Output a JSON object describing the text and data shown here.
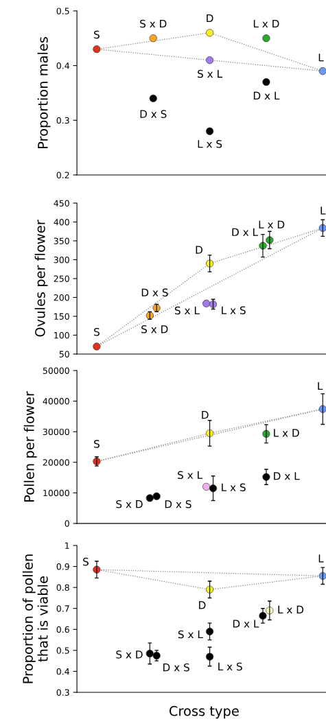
{
  "chart_data": [
    {
      "type": "scatter",
      "ylabel": "Proportion males",
      "categories": [
        null,
        null,
        null,
        null,
        null
      ],
      "ylim": [
        0.2,
        0.5
      ],
      "yticks": [
        0.2,
        0.3,
        0.4,
        0.5
      ],
      "tick_labels": "y",
      "marker": "circle",
      "series": [
        {
          "type": "line",
          "color": "#808080",
          "line_style": "dotted",
          "marker": "none",
          "values": [
            0.43,
            null,
            0.46,
            null,
            0.39
          ]
        },
        {
          "type": "line",
          "color": "#808080",
          "line_style": "dotted",
          "marker": "none",
          "values": [
            0.43,
            null,
            null,
            null,
            0.39
          ]
        },
        {
          "name": "S",
          "color": "#e0301e",
          "values": [
            0.43,
            null,
            null,
            null,
            null
          ]
        },
        {
          "name": "S x D",
          "color": "#f5a623",
          "values": [
            null,
            0.45,
            null,
            null,
            null
          ]
        },
        {
          "name": "D x S",
          "color": "#000000",
          "values": [
            null,
            0.34,
            null,
            null,
            null
          ]
        },
        {
          "name": "D",
          "color": "#f5f020",
          "values": [
            null,
            null,
            0.46,
            null,
            null
          ]
        },
        {
          "name": "S x L",
          "color": "#a07ae8",
          "values": [
            null,
            null,
            0.41,
            null,
            null
          ]
        },
        {
          "name": "L x S",
          "color": "#000000",
          "values": [
            null,
            null,
            0.28,
            null,
            null
          ]
        },
        {
          "name": "L x D",
          "color": "#2ea82e",
          "values": [
            null,
            null,
            null,
            0.45,
            null
          ]
        },
        {
          "name": "D x L",
          "color": "#000000",
          "values": [
            null,
            null,
            null,
            0.37,
            null
          ]
        },
        {
          "name": "L",
          "color": "#6a9af0",
          "values": [
            null,
            null,
            null,
            null,
            0.39
          ]
        }
      ]
    },
    {
      "type": "scatter",
      "ylabel": "Ovules per flower",
      "categories": [
        null,
        null,
        null,
        null,
        null
      ],
      "ylim": [
        50,
        450
      ],
      "yticks": [
        50,
        100,
        150,
        200,
        250,
        300,
        350,
        400,
        450
      ],
      "tick_labels": "y",
      "marker": "circle",
      "series": [
        {
          "type": "line",
          "color": "#808080",
          "line_style": "dotted",
          "marker": "none",
          "values": [
            70,
            null,
            290,
            null,
            384
          ]
        },
        {
          "type": "line",
          "color": "#808080",
          "line_style": "dotted",
          "marker": "none",
          "values": [
            70,
            null,
            null,
            null,
            384
          ]
        },
        {
          "name": "S",
          "color": "#e0301e",
          "values": [
            70,
            null,
            null,
            null,
            null
          ]
        },
        {
          "name": "S x D",
          "color": "#f5a623",
          "values": [
            null,
            152,
            null,
            null,
            null
          ],
          "errors": [
            null,
            10,
            null,
            null,
            null
          ]
        },
        {
          "name": "D x S",
          "color": "#f5a623",
          "values": [
            null,
            172,
            null,
            null,
            null
          ],
          "errors": [
            null,
            10,
            null,
            null,
            null
          ]
        },
        {
          "name": "D",
          "color": "#f5f020",
          "values": [
            null,
            null,
            290,
            null,
            null
          ],
          "errors": [
            null,
            null,
            22,
            null,
            null
          ]
        },
        {
          "name": "S x L",
          "color": "#a07ae8",
          "values": [
            null,
            null,
            184,
            null,
            null
          ]
        },
        {
          "name": "L x S",
          "color": "#a07ae8",
          "values": [
            null,
            null,
            182,
            null,
            null
          ],
          "errors": [
            null,
            null,
            13,
            null,
            null
          ]
        },
        {
          "name": "D x L",
          "color": "#2ea82e",
          "values": [
            null,
            null,
            null,
            337,
            null
          ],
          "errors": [
            null,
            null,
            null,
            30,
            null
          ]
        },
        {
          "name": "L x D",
          "color": "#2ea82e",
          "values": [
            null,
            null,
            null,
            352,
            null
          ],
          "errors": [
            null,
            null,
            null,
            23,
            null
          ]
        },
        {
          "name": "L",
          "color": "#6a9af0",
          "values": [
            null,
            null,
            null,
            null,
            384
          ],
          "errors": [
            null,
            null,
            null,
            null,
            22
          ]
        }
      ]
    },
    {
      "type": "scatter",
      "ylabel": "Pollen per flower",
      "categories": [
        null,
        null,
        null,
        null,
        null
      ],
      "ylim": [
        0,
        50000
      ],
      "yticks": [
        0,
        10000,
        20000,
        30000,
        40000,
        50000
      ],
      "tick_labels": "y",
      "marker": "circle",
      "series": [
        {
          "type": "line",
          "color": "#808080",
          "line_style": "dotted",
          "marker": "none",
          "values": [
            20300,
            null,
            29500,
            null,
            37400
          ]
        },
        {
          "type": "line",
          "color": "#808080",
          "line_style": "dotted",
          "marker": "none",
          "values": [
            20300,
            null,
            null,
            null,
            37400
          ]
        },
        {
          "name": "S",
          "color": "#e0301e",
          "values": [
            20300,
            null,
            null,
            null,
            null
          ],
          "errors": [
            1500,
            null,
            null,
            null,
            null
          ]
        },
        {
          "name": "S x D",
          "color": "#000000",
          "values": [
            null,
            8300,
            null,
            null,
            null
          ]
        },
        {
          "name": "D x S",
          "color": "#000000",
          "values": [
            null,
            8900,
            null,
            null,
            null
          ]
        },
        {
          "name": "D",
          "color": "#f5f020",
          "values": [
            null,
            null,
            29500,
            null,
            null
          ],
          "errors": [
            null,
            null,
            4200,
            null,
            null
          ]
        },
        {
          "name": "S x L",
          "color": "#f0b0f0",
          "values": [
            null,
            null,
            12000,
            null,
            null
          ]
        },
        {
          "name": "L x S",
          "color": "#000000",
          "values": [
            null,
            null,
            11500,
            null,
            null
          ],
          "errors": [
            null,
            null,
            4000,
            null,
            null
          ]
        },
        {
          "name": "D x L",
          "color": "#000000",
          "values": [
            null,
            null,
            null,
            15200,
            null
          ],
          "errors": [
            null,
            null,
            null,
            2500,
            null
          ]
        },
        {
          "name": "L x D",
          "color": "#2ea82e",
          "values": [
            null,
            null,
            null,
            29300,
            null
          ],
          "errors": [
            null,
            null,
            null,
            3000,
            null
          ]
        },
        {
          "name": "L",
          "color": "#6a9af0",
          "values": [
            null,
            null,
            null,
            null,
            37400
          ],
          "errors": [
            null,
            null,
            null,
            null,
            5000
          ]
        }
      ]
    },
    {
      "type": "scatter",
      "ylabel": "Proportion of pollen\nthat is viable",
      "xlabel": "Cross type",
      "categories": [
        null,
        null,
        null,
        null,
        null
      ],
      "ylim": [
        0.3,
        1
      ],
      "yticks": [
        0.3,
        0.4,
        0.5,
        0.6,
        0.7,
        0.8,
        0.9,
        1
      ],
      "tick_labels": "y",
      "marker": "circle",
      "series": [
        {
          "type": "line",
          "color": "#808080",
          "line_style": "dotted",
          "marker": "none",
          "values": [
            0.885,
            null,
            0.79,
            null,
            0.855
          ]
        },
        {
          "type": "line",
          "color": "#808080",
          "line_style": "dotted",
          "marker": "none",
          "values": [
            0.885,
            null,
            null,
            null,
            0.855
          ]
        },
        {
          "name": "S",
          "color": "#e0301e",
          "values": [
            0.885,
            null,
            null,
            null,
            null
          ],
          "errors": [
            0.04,
            null,
            null,
            null,
            null
          ]
        },
        {
          "name": "S x D",
          "color": "#000000",
          "values": [
            null,
            0.485,
            null,
            null,
            null
          ],
          "errors": [
            null,
            0.05,
            null,
            null,
            null
          ]
        },
        {
          "name": "D x S",
          "color": "#000000",
          "values": [
            null,
            0.475,
            null,
            null,
            null
          ],
          "errors": [
            null,
            0.025,
            null,
            null,
            null
          ]
        },
        {
          "name": "D",
          "color": "#f5f020",
          "values": [
            null,
            null,
            0.79,
            null,
            null
          ],
          "errors": [
            null,
            null,
            0.04,
            null,
            null
          ]
        },
        {
          "name": "S x L",
          "color": "#000000",
          "values": [
            null,
            null,
            0.59,
            null,
            null
          ],
          "errors": [
            null,
            null,
            0.04,
            null,
            null
          ]
        },
        {
          "name": "L x S",
          "color": "#000000",
          "values": [
            null,
            null,
            0.47,
            null,
            null
          ],
          "errors": [
            null,
            null,
            0.045,
            null,
            null
          ]
        },
        {
          "name": "D x L",
          "color": "#000000",
          "values": [
            null,
            null,
            null,
            0.665,
            null
          ],
          "errors": [
            null,
            null,
            null,
            0.035,
            null
          ]
        },
        {
          "name": "L x D",
          "color": "#ffffc0",
          "values": [
            null,
            null,
            null,
            0.69,
            null
          ],
          "errors": [
            null,
            null,
            null,
            0.045,
            null
          ]
        },
        {
          "name": "L",
          "color": "#6a9af0",
          "values": [
            null,
            null,
            null,
            null,
            0.855
          ],
          "errors": [
            null,
            null,
            null,
            null,
            0.04
          ]
        }
      ]
    }
  ]
}
